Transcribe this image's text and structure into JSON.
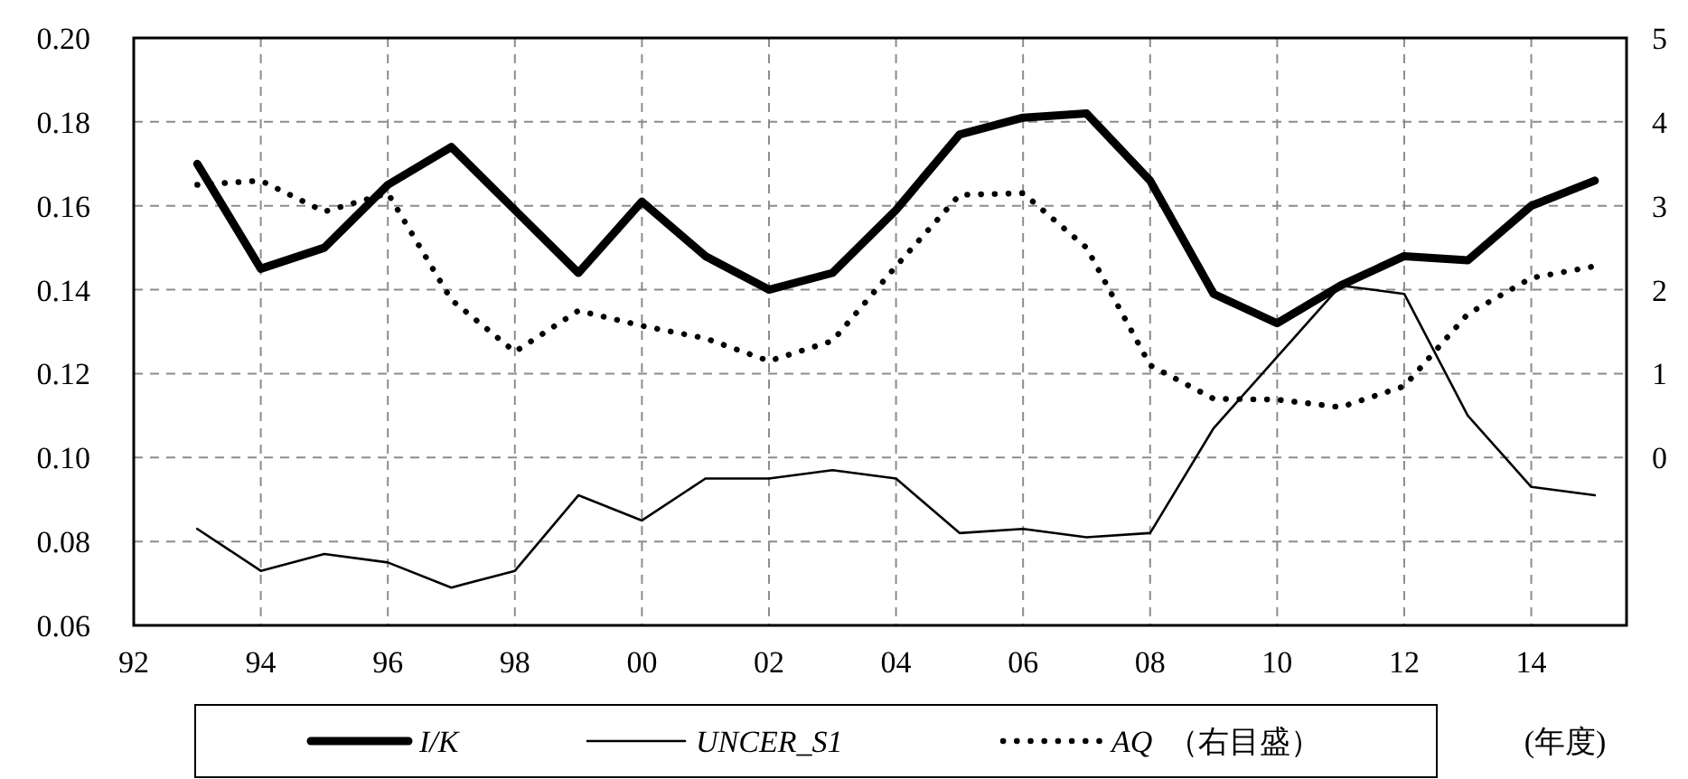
{
  "chart_data": {
    "type": "line",
    "xlabel": "(年度)",
    "x": [
      1993,
      1994,
      1995,
      1996,
      1997,
      1998,
      1999,
      2000,
      2001,
      2002,
      2003,
      2004,
      2005,
      2006,
      2007,
      2008,
      2009,
      2010,
      2011,
      2012,
      2013,
      2014,
      2015
    ],
    "xlim": [
      1992,
      2015.5
    ],
    "xticks": [
      {
        "value": 1992,
        "label": "92"
      },
      {
        "value": 1994,
        "label": "94"
      },
      {
        "value": 1996,
        "label": "96"
      },
      {
        "value": 1998,
        "label": "98"
      },
      {
        "value": 2000,
        "label": "00"
      },
      {
        "value": 2002,
        "label": "02"
      },
      {
        "value": 2004,
        "label": "04"
      },
      {
        "value": 2006,
        "label": "06"
      },
      {
        "value": 2008,
        "label": "08"
      },
      {
        "value": 2010,
        "label": "10"
      },
      {
        "value": 2012,
        "label": "12"
      },
      {
        "value": 2014,
        "label": "14"
      }
    ],
    "ylim": [
      0.06,
      0.2
    ],
    "yticks": [
      {
        "value": 0.06,
        "label": "0.06"
      },
      {
        "value": 0.08,
        "label": "0.08"
      },
      {
        "value": 0.1,
        "label": "0.10"
      },
      {
        "value": 0.12,
        "label": "0.12"
      },
      {
        "value": 0.14,
        "label": "0.14"
      },
      {
        "value": 0.16,
        "label": "0.16"
      },
      {
        "value": 0.18,
        "label": "0.18"
      },
      {
        "value": 0.2,
        "label": "0.20"
      }
    ],
    "y2lim": [
      -2,
      5
    ],
    "y2ticks": [
      0,
      1,
      2,
      3,
      4,
      5
    ],
    "grid": true,
    "legend": "bottom",
    "series": [
      {
        "name": "I/K",
        "color": "#000000",
        "line_style": "solid",
        "values": [
          0.17,
          0.145,
          0.15,
          0.165,
          0.174,
          0.159,
          0.144,
          0.161,
          0.148,
          0.14,
          0.144,
          0.159,
          0.177,
          0.181,
          0.182,
          0.166,
          0.139,
          0.132,
          0.141,
          0.148,
          0.147,
          0.16,
          0.166
        ]
      },
      {
        "name": "UNCER_S1",
        "color": "#000000",
        "line_style": "solid",
        "values": [
          0.083,
          0.073,
          0.077,
          0.075,
          0.069,
          0.073,
          0.091,
          0.085,
          0.095,
          0.095,
          0.097,
          0.095,
          0.082,
          0.083,
          0.081,
          0.082,
          0.107,
          0.124,
          0.141,
          0.139,
          0.11,
          0.093,
          0.091
        ]
      },
      {
        "name": "AQ （右目盛）",
        "color": "#000000",
        "line_style": "dotted",
        "axis": "y2",
        "values": [
          3.25,
          3.3,
          2.93,
          3.15,
          1.88,
          1.26,
          1.75,
          1.57,
          1.42,
          1.15,
          1.39,
          2.28,
          3.13,
          3.15,
          2.5,
          1.1,
          0.7,
          0.69,
          0.6,
          0.85,
          1.71,
          2.14,
          2.28
        ]
      }
    ]
  }
}
